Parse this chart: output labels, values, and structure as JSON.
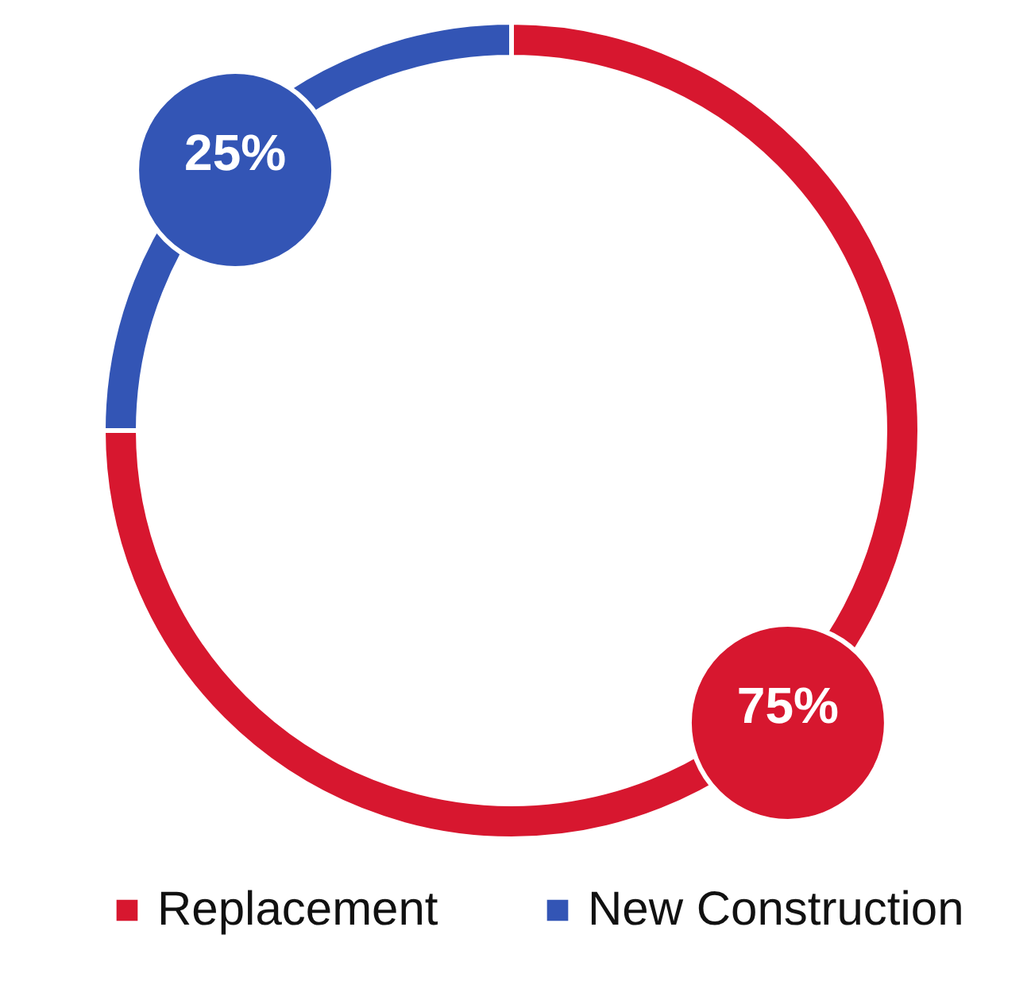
{
  "chart_data": {
    "type": "donut",
    "categories": [
      "Replacement",
      "New Construction"
    ],
    "values": [
      75,
      25
    ],
    "colors": [
      "#d7172f",
      "#3355b5"
    ],
    "value_labels": [
      "75%",
      "25%"
    ],
    "legend": "bottom"
  }
}
